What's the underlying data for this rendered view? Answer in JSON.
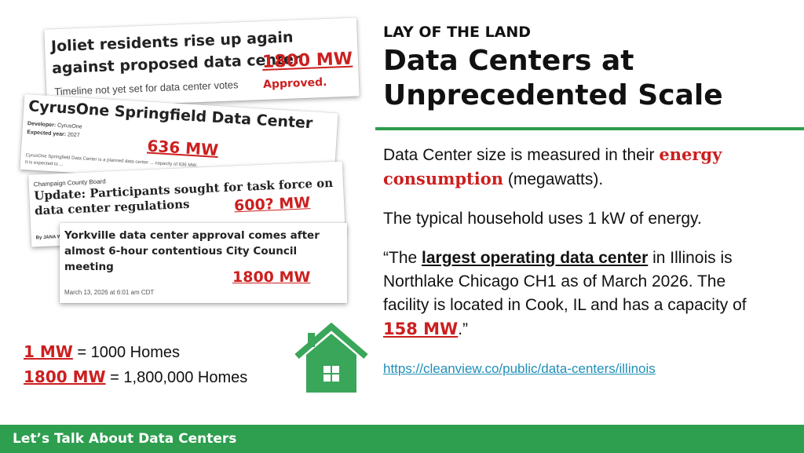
{
  "cards": {
    "joliet": {
      "headline": "Joliet residents rise up again against proposed data center",
      "subhead": "Timeline not yet set for data center votes",
      "mw": "1800 MW",
      "status": "Approved."
    },
    "springfield": {
      "headline": "CyrusOne Springfield Data Center",
      "developer_label": "Developer:",
      "developer": "CyrusOne",
      "year_label": "Expected year:",
      "year": "2027",
      "mw": "636 MW",
      "description": "CyrusOne Springfield Data Center is a planned data center ... capacity of 636 MW. It is expected to ..."
    },
    "champaign": {
      "kicker": "Champaign County Board",
      "headline": "Update: Participants sought for task force on data center regulations",
      "mw": "600? MW",
      "byline": "By JANA W"
    },
    "yorkville": {
      "headline": "Yorkville data center approval comes after almost 6-hour contentious City Council meeting",
      "mw": "1800 MW",
      "date": "March 13, 2026 at 6:01 am CDT"
    }
  },
  "equations": [
    {
      "value": "1 MW",
      "rest": " = 1000 Homes"
    },
    {
      "value": "1800 MW",
      "rest": " = 1,800,000 Homes"
    }
  ],
  "house_icon": "house-icon",
  "kicker": "LAY OF THE LAND",
  "title": "Data Centers at Unprecedented Scale",
  "paragraph1": {
    "before": "Data Center size is measured in their ",
    "emphasis": "energy consumption",
    "after": " (megawatts)."
  },
  "paragraph2": "The typical household uses 1 kW of energy.",
  "paragraph3": {
    "open": "“The ",
    "emphasis": "largest operating data center",
    "middle": " in Illinois is Northlake Chicago CH1 as of March 2026. The facility is located in Cook, IL and has a capacity of ",
    "value": "158 MW",
    "close": ".”"
  },
  "link": "https://cleanview.co/public/data-centers/illinois",
  "footer": "Let’s Talk About Data Centers",
  "colors": {
    "accent_green": "#2e9e4f",
    "highlight_red": "#cc1f1f",
    "link_blue": "#1f8fb8"
  }
}
